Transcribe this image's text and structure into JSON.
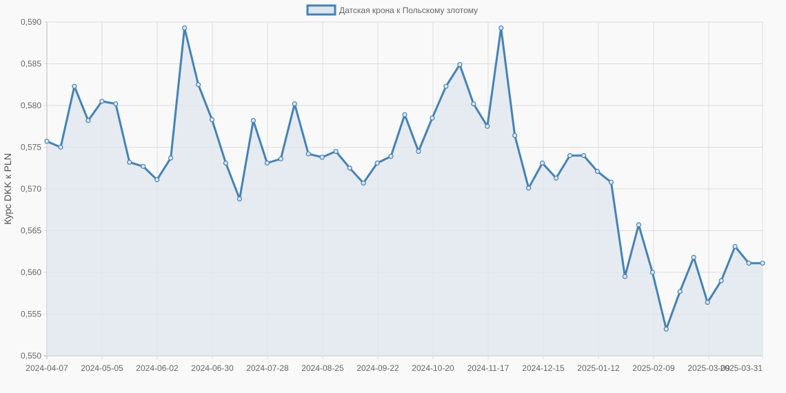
{
  "chart_data": {
    "type": "line",
    "title": "",
    "legend": {
      "position": "top",
      "entries": [
        "Датская крона к Польскому злотому"
      ]
    },
    "xlabel": "",
    "ylabel": "Курс DKK к PLN",
    "ylim": [
      0.55,
      0.59
    ],
    "y_ticks": [
      "0,550",
      "0,555",
      "0,560",
      "0,565",
      "0,570",
      "0,575",
      "0,580",
      "0,585",
      "0,590"
    ],
    "x_tick_labels": [
      "2024-04-07",
      "2024-05-05",
      "2024-06-02",
      "2024-06-30",
      "2024-07-28",
      "2024-08-25",
      "2024-09-22",
      "2024-10-20",
      "2024-11-17",
      "2024-12-15",
      "2025-01-12",
      "2025-02-09",
      "2025-03-09",
      "2025-03-31"
    ],
    "grid": true,
    "fill": true,
    "colors": {
      "line": "#4682b4",
      "fill": "#dde6ee",
      "grid": "#dddddd"
    },
    "series": [
      {
        "name": "Датская крона к Польскому злотому",
        "values": [
          0.5757,
          0.575,
          0.5823,
          0.5782,
          0.5805,
          0.5802,
          0.5732,
          0.5727,
          0.5711,
          0.5737,
          0.5893,
          0.5825,
          0.5783,
          0.5731,
          0.5688,
          0.5782,
          0.5731,
          0.5736,
          0.5802,
          0.5742,
          0.5738,
          0.5745,
          0.5725,
          0.5707,
          0.5731,
          0.5739,
          0.5789,
          0.5745,
          0.5785,
          0.5823,
          0.5849,
          0.5802,
          0.5775,
          0.5893,
          0.5764,
          0.5701,
          0.5731,
          0.5713,
          0.574,
          0.574,
          0.5721,
          0.5708,
          0.5595,
          0.5657,
          0.56,
          0.5532,
          0.5577,
          0.5618,
          0.5564,
          0.559,
          0.5631,
          0.5611,
          0.5611
        ]
      }
    ]
  }
}
